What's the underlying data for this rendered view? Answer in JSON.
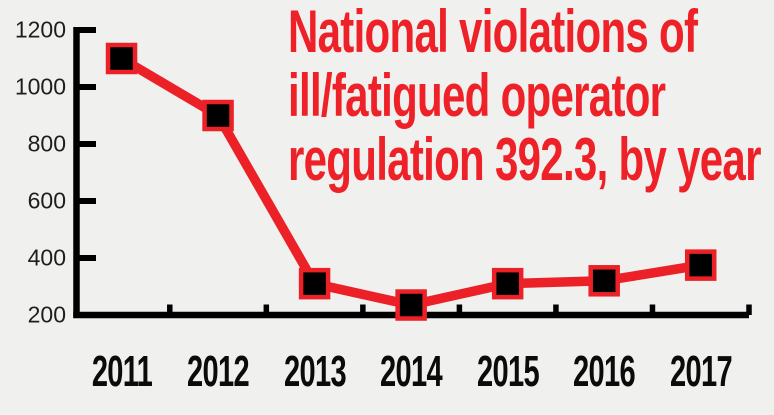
{
  "page": {
    "background": "#f0f0ee"
  },
  "title": {
    "lines": [
      "National violations of",
      "ill/fatigued operator",
      "regulation 392.3, by year"
    ],
    "color": "#ed2127"
  },
  "chart_data": {
    "type": "line",
    "title": "National violations of ill/fatigued operator regulation 392.3, by year",
    "categories": [
      "2011",
      "2012",
      "2013",
      "2014",
      "2015",
      "2016",
      "2017"
    ],
    "series": [
      {
        "name": "National violations of regulation 392.3",
        "values": [
          1100,
          900,
          310,
          235,
          310,
          320,
          375
        ]
      }
    ],
    "xlabel": "",
    "ylabel": "",
    "ylim": [
      200,
      1200
    ],
    "yticks": [
      200,
      400,
      600,
      800,
      1000,
      1200
    ],
    "grid": false,
    "legend": false,
    "line_color": "#ec2127",
    "line_width": 9.5,
    "marker_shape": "square",
    "marker_fill": "#000000",
    "marker_border": "#ec2127",
    "axis_color": "#000000",
    "y_tick_label_color": "#1e1e1e",
    "x_tick_label_color": "#0b0b0b"
  }
}
